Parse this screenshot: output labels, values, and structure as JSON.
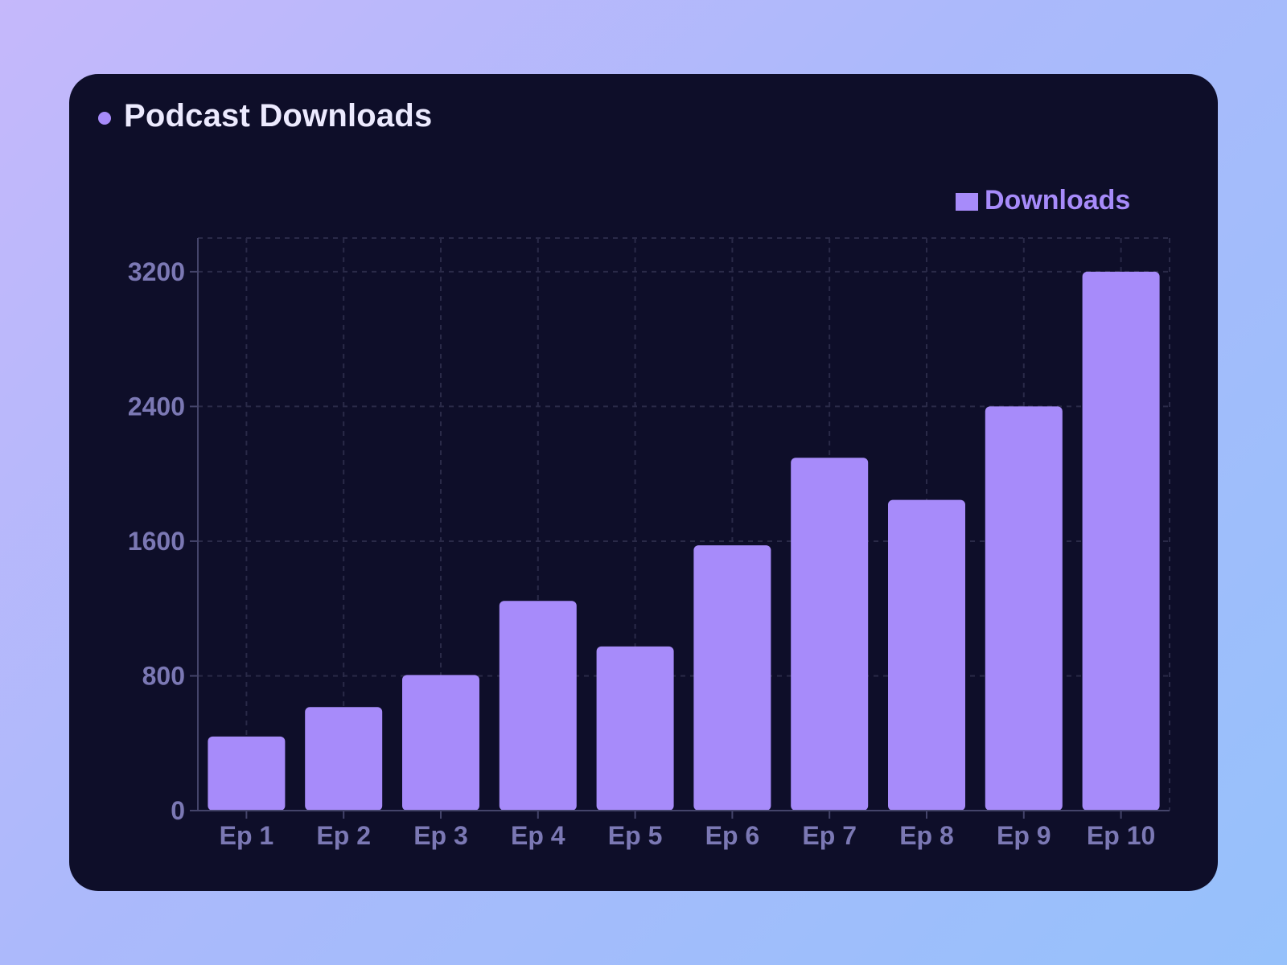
{
  "colors": {
    "card_background": "#0e0e29",
    "accent": "#a78bfa",
    "title_text": "#eceafe",
    "axis_text": "#7b78b4",
    "grid": "#2a2a48",
    "axis_line": "#44446a"
  },
  "header": {
    "title": "Podcast Downloads",
    "dot_icon": "bullet-dot"
  },
  "chart_data": {
    "type": "bar",
    "title": "Podcast Downloads",
    "xlabel": "",
    "ylabel": "",
    "categories": [
      "Ep 1",
      "Ep 2",
      "Ep 3",
      "Ep 4",
      "Ep 5",
      "Ep 6",
      "Ep 7",
      "Ep 8",
      "Ep 9",
      "Ep 10"
    ],
    "series": [
      {
        "name": "Downloads",
        "color": "#a78bfa",
        "values": [
          440,
          615,
          805,
          1245,
          975,
          1575,
          2095,
          1845,
          2400,
          3200
        ]
      }
    ],
    "ylim": [
      0,
      3400
    ],
    "yticks": [
      0,
      800,
      1600,
      2400,
      3200
    ],
    "ytick_labels": [
      "0",
      "800",
      "1600",
      "2400",
      "3200"
    ],
    "grid": true,
    "legend": {
      "position": "top-right",
      "label": "Downloads"
    }
  }
}
